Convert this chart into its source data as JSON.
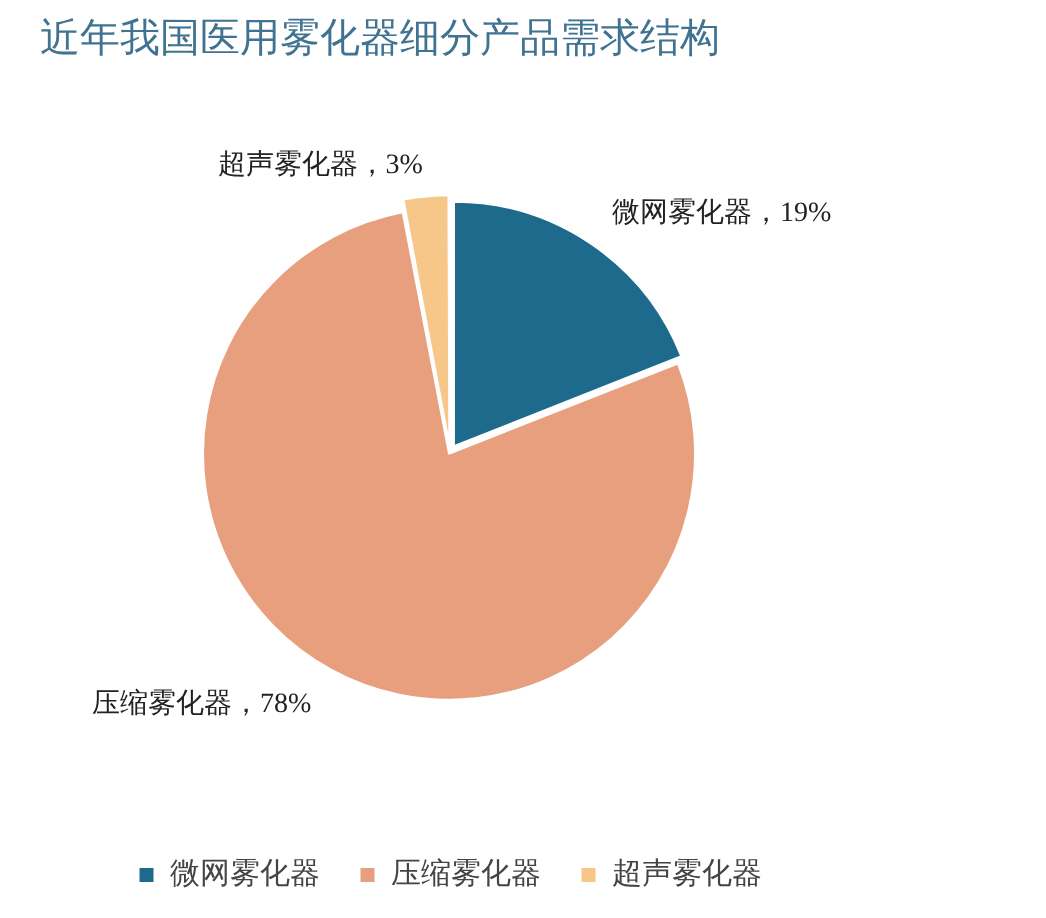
{
  "chart_data": {
    "type": "pie",
    "title": "近年我国医用雾化器细分产品需求结构",
    "categories": [
      "微网雾化器",
      "压缩雾化器",
      "超声雾化器"
    ],
    "values": [
      19,
      78,
      3
    ],
    "colors": [
      "#1e6a8d",
      "#e89f7d",
      "#f7c78a"
    ],
    "value_labels": [
      "微网雾化器，19%",
      "压缩雾化器，78%",
      "超声雾化器，3%"
    ],
    "legend": "bottom"
  }
}
